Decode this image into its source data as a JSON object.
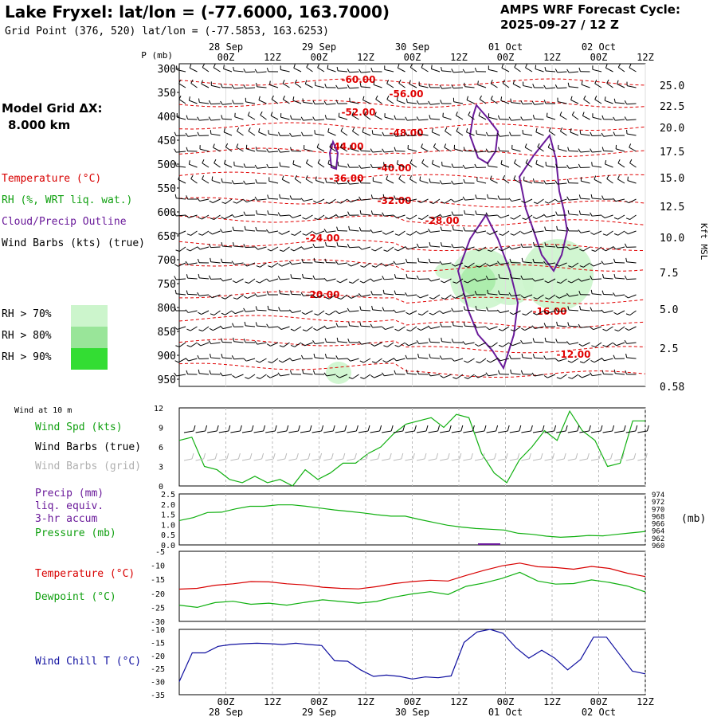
{
  "header": {
    "title": "Lake Fryxel:  lat/lon = (-77.6000, 163.7000)",
    "subtitle": "Grid Point (376, 520) lat/lon = (-77.5853, 163.6253)",
    "model_line1": "AMPS WRF Forecast Cycle:",
    "model_line2": "2025-09-27 / 12  Z"
  },
  "left_panel": {
    "grid_label": "Model Grid ΔX:",
    "grid_value": "8.000 km",
    "temperature": "Temperature (°C)",
    "rh": "RH (%, WRT liq. wat.)",
    "cloud": "Cloud/Precip Outline",
    "wind": "Wind Barbs (kts) (true)",
    "rh70": "RH > 70%",
    "rh80": "RH > 80%",
    "rh90": "RH > 90%",
    "colors": {
      "rh70": "#ccf5cc",
      "rh80": "#99e599",
      "rh90": "#33dd33"
    }
  },
  "time_axis": {
    "hour_labels": [
      "00Z",
      "12Z",
      "00Z",
      "12Z",
      "00Z",
      "12Z",
      "00Z",
      "12Z",
      "00Z",
      "12Z"
    ],
    "date_labels": [
      "28 Sep",
      "29 Sep",
      "30 Sep",
      "01 Oct",
      "02 Oct"
    ]
  },
  "chart_data": [
    {
      "type": "contour",
      "name": "cross-section",
      "y_axis_label": "P (mb)",
      "pressure_levels": [
        300,
        350,
        400,
        450,
        500,
        550,
        600,
        650,
        700,
        750,
        800,
        850,
        900,
        950
      ],
      "right_axis_label": "Kft MSL",
      "kft_ticks": [
        "25.0",
        "22.5",
        "20.0",
        "17.5",
        "15.0",
        "12.5",
        "10.0",
        "7.5",
        "5.0",
        "2.5",
        "0.58"
      ],
      "temperature_labels": [
        "-60.00",
        "-56.00",
        "-52.00",
        "-48.00",
        "-44.00",
        "-40.00",
        "-36.00",
        "-32.00",
        "-28.00",
        "-24.00",
        "-20.00",
        "-16.00",
        "-12.00"
      ]
    },
    {
      "type": "line",
      "name": "wind-10m",
      "title": "Wind at 10 m",
      "series_labels": [
        "Wind Spd (kts)",
        "Wind Barbs (true)",
        "Wind Barbs (grid)"
      ],
      "y_ticks": [
        "12",
        "9",
        "6",
        "3",
        "0"
      ],
      "wind_speed": [
        7,
        7.5,
        3,
        2.5,
        1,
        0.5,
        1.5,
        0.5,
        1,
        0,
        2.5,
        1,
        2,
        3.5,
        3.5,
        5,
        6,
        8,
        9.5,
        10,
        10.5,
        9,
        11,
        10.5,
        5,
        2,
        0.5,
        4,
        6,
        8.5,
        7,
        11.5,
        8.5,
        7,
        3,
        3.5,
        10,
        10
      ]
    },
    {
      "type": "line",
      "name": "precip-pressure",
      "series_labels": [
        "Precip (mm)",
        "liq. equiv.",
        "3-hr accum",
        "Pressure (mb)"
      ],
      "left_ticks": [
        "2.5",
        "2.0",
        "1.5",
        "1.0",
        "0.5",
        "0.0"
      ],
      "right_ticks": [
        "974",
        "972",
        "970",
        "968",
        "966",
        "964",
        "962",
        "960"
      ],
      "right_unit": "(mb)",
      "pressure": [
        966.7,
        967.5,
        968.9,
        969.0,
        969.9,
        970.6,
        970.6,
        971.0,
        971.0,
        970.6,
        970.1,
        969.6,
        969.2,
        968.8,
        968.3,
        967.9,
        967.9,
        967.0,
        966.2,
        965.4,
        964.9,
        964.5,
        964.3,
        964.1,
        963.2,
        962.9,
        962.4,
        962.1,
        962.3,
        962.6,
        962.5,
        962.9,
        963.3,
        963.7
      ]
    },
    {
      "type": "line",
      "name": "temperature-dewpoint",
      "series_labels": [
        "Temperature (°C)",
        "Dewpoint (°C)"
      ],
      "y_ticks": [
        "-5",
        "-10",
        "-15",
        "-20",
        "-25",
        "-30"
      ],
      "temperature": [
        -18.5,
        -18.2,
        -17.1,
        -16.6,
        -15.8,
        -15.9,
        -16.6,
        -17.0,
        -17.8,
        -18.2,
        -18.4,
        -17.6,
        -16.5,
        -15.8,
        -15.3,
        -15.6,
        -13.6,
        -11.8,
        -10.2,
        -9.2,
        -10.5,
        -10.8,
        -11.4,
        -10.4,
        -11.1,
        -12.8,
        -14.0
      ],
      "dewpoint": [
        -24.2,
        -25.0,
        -23.3,
        -22.8,
        -23.9,
        -23.5,
        -24.2,
        -23.2,
        -22.3,
        -22.9,
        -23.5,
        -22.9,
        -21.3,
        -20.2,
        -19.4,
        -20.4,
        -17.5,
        -16.3,
        -14.7,
        -12.5,
        -15.6,
        -16.7,
        -16.5,
        -15.2,
        -16.1,
        -17.4,
        -19.5
      ],
      "colors": {
        "temperature": "#d80000",
        "dewpoint": "#10b010"
      }
    },
    {
      "type": "line",
      "name": "wind-chill",
      "series_labels": [
        "Wind Chill T (°C)"
      ],
      "y_ticks": [
        "-10",
        "-15",
        "-20",
        "-25",
        "-30",
        "-35"
      ],
      "wind_chill": [
        -30,
        -19,
        -19,
        -16.5,
        -15.8,
        -15.5,
        -15.3,
        -15.5,
        -15.8,
        -15.3,
        -15.8,
        -16.2,
        -22,
        -22.2,
        -25.5,
        -28,
        -27.5,
        -28,
        -29,
        -28.2,
        -28.5,
        -27.8,
        -15,
        -11,
        -10,
        -11.5,
        -17,
        -21,
        -18,
        -21,
        -25.5,
        -21.5,
        -13,
        -13,
        -19.5,
        -26,
        -27
      ],
      "color": "#1010a0"
    }
  ]
}
